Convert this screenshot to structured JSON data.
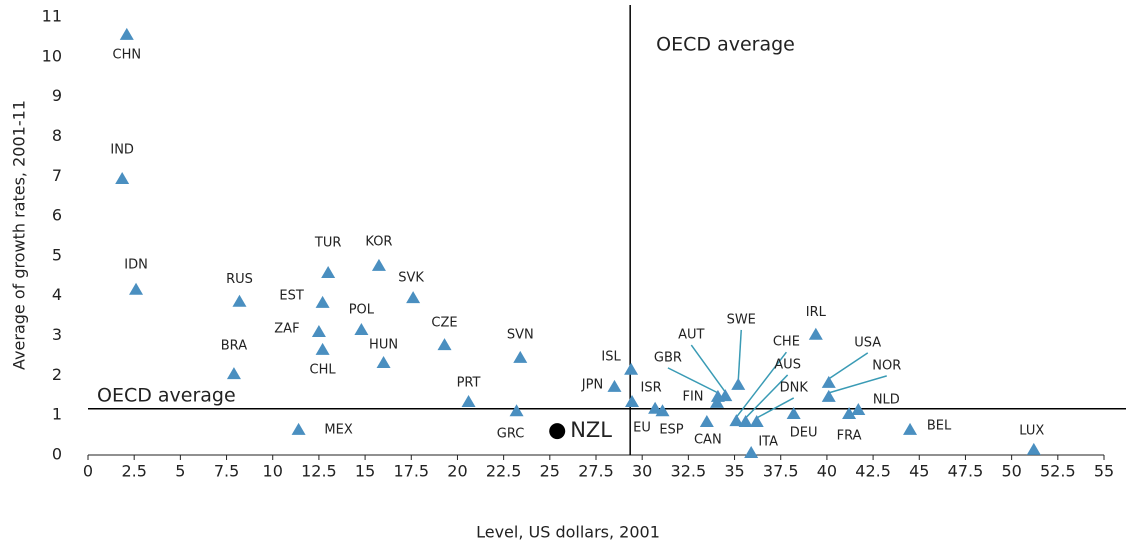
{
  "chart_data": {
    "type": "scatter",
    "xlabel": "Level, US dollars, 2001",
    "ylabel": "Average of growth rates, 2001-11",
    "xlim": [
      0,
      55
    ],
    "ylim": [
      0,
      11
    ],
    "xticks": [
      0,
      2.5,
      5,
      7.5,
      10,
      12.5,
      15,
      17.5,
      20,
      22.5,
      25,
      27.5,
      30,
      32.5,
      35,
      37.5,
      40,
      42.5,
      45,
      47.5,
      50,
      52.5,
      55
    ],
    "yticks": [
      0,
      1,
      2,
      3,
      4,
      5,
      6,
      7,
      8,
      9,
      10,
      11
    ],
    "color": "#4a8fc0",
    "leader_color": "#3a9bb5",
    "labels": [
      "CHN",
      "IND",
      "IDN",
      "RUS",
      "BRA",
      "MEX",
      "TUR",
      "EST",
      "ZAF",
      "CHL",
      "KOR",
      "POL",
      "HUN",
      "SVK",
      "CZE",
      "PRT",
      "SVN",
      "GRC",
      "ISL",
      "JPN",
      "EU",
      "ISR",
      "ESP",
      "CAN",
      "FIN",
      "GBR",
      "AUT",
      "SWE",
      "CHE",
      "AUS",
      "DNK",
      "ITA",
      "DEU",
      "IRL",
      "USA",
      "NOR",
      "NLD",
      "FRA",
      "BEL",
      "LUX"
    ],
    "x": [
      2.1,
      1.85,
      2.6,
      8.2,
      7.9,
      11.4,
      13.0,
      12.7,
      12.5,
      12.7,
      15.75,
      14.8,
      16.0,
      17.6,
      19.3,
      20.6,
      23.4,
      23.2,
      29.4,
      28.5,
      29.45,
      30.7,
      31.1,
      33.5,
      34.05,
      34.1,
      34.5,
      35.2,
      35.1,
      35.6,
      36.2,
      35.9,
      38.2,
      39.4,
      40.1,
      40.1,
      41.7,
      41.2,
      44.5,
      51.2
    ],
    "values": [
      10.55,
      6.93,
      4.15,
      3.85,
      2.03,
      0.63,
      4.57,
      3.82,
      3.09,
      2.64,
      4.75,
      3.14,
      2.31,
      3.94,
      2.76,
      1.33,
      2.44,
      1.1,
      2.14,
      1.71,
      1.33,
      1.16,
      1.1,
      0.83,
      1.31,
      1.46,
      1.48,
      1.76,
      0.85,
      0.83,
      0.83,
      0.05,
      1.03,
      3.02,
      1.81,
      1.46,
      1.13,
      1.03,
      0.63,
      0.13
    ],
    "highlight": {
      "label": "NZL",
      "x": 25.4,
      "y": 0.6,
      "color": "#000000"
    },
    "reference_lines": [
      {
        "label": "OECD average",
        "axis": "x",
        "value": 29.35
      },
      {
        "label": "OECD average",
        "axis": "y",
        "value": 1.16
      }
    ]
  }
}
